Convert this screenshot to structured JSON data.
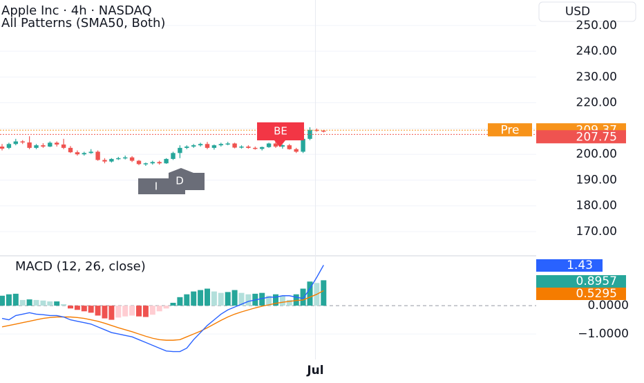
{
  "chart_data": [
    {
      "type": "candlestick",
      "title": "Apple Inc · 4h · NASDAQ",
      "subtitle": "All Patterns (SMA50, Both)",
      "currency": "USD",
      "x": [
        null,
        null,
        null,
        null,
        null,
        null,
        null,
        null,
        null,
        null,
        null,
        null,
        null,
        null,
        null,
        null,
        null,
        null,
        null,
        null,
        null,
        null,
        null,
        null,
        null,
        null,
        null,
        null,
        null,
        null,
        null,
        null,
        null,
        null,
        null,
        null,
        null,
        null,
        null,
        null,
        null,
        null,
        null,
        null,
        null,
        "Jul",
        null,
        null
      ],
      "open": [
        203,
        202.5,
        204,
        205,
        204.6,
        202.5,
        203.5,
        203,
        204.5,
        203.8,
        202.5,
        200.8,
        200,
        200.5,
        201,
        197.8,
        197.2,
        198.2,
        198.5,
        198.8,
        197.5,
        196.2,
        196.5,
        197,
        196.5,
        198.2,
        200.5,
        202.5,
        203,
        203.5,
        204,
        202.5,
        203.5,
        204,
        204.2,
        202.6,
        203,
        202.5,
        202.1,
        202.8,
        204.2,
        203,
        203.5,
        202,
        201,
        206,
        209.5,
        209.2
      ],
      "high": [
        204,
        204.5,
        206,
        205.5,
        207,
        204,
        204.3,
        205,
        205,
        206,
        203.2,
        201.5,
        201,
        202,
        201.5,
        198.5,
        198.5,
        199,
        199.5,
        199.3,
        197.8,
        196.8,
        197.5,
        197.5,
        198.5,
        201,
        203.5,
        203.5,
        204,
        204.5,
        204.8,
        203.8,
        204.5,
        204.8,
        204.5,
        203.5,
        203.5,
        203,
        203,
        204.5,
        205,
        203.8,
        204,
        202.5,
        206.5,
        210.5,
        210,
        209.5
      ],
      "low": [
        201.5,
        202,
        203.5,
        204,
        202,
        202,
        202.5,
        202.8,
        203,
        202,
        200.5,
        199.5,
        199.5,
        200.2,
        197.5,
        196.5,
        196.8,
        197.8,
        198,
        197,
        195.8,
        195.5,
        196,
        196,
        196.3,
        197.8,
        198.5,
        202,
        202.5,
        203,
        202,
        201.8,
        203,
        203.5,
        202.3,
        202.2,
        202.2,
        201.8,
        201.5,
        202.5,
        202.5,
        202.2,
        201.8,
        200.5,
        200.5,
        205.5,
        208.8,
        208.5
      ],
      "close": [
        202.2,
        204,
        205,
        204.6,
        202.5,
        203.5,
        203,
        204.5,
        203.8,
        202.5,
        200.8,
        200,
        200.5,
        201,
        197.8,
        197.2,
        198.2,
        198.5,
        198.8,
        197.5,
        196.2,
        196.5,
        197,
        196.5,
        198.2,
        200.5,
        202.5,
        203,
        203.5,
        204,
        202.5,
        203.5,
        204,
        204.2,
        202.6,
        203,
        202.5,
        202.1,
        202.8,
        204.2,
        203,
        203.5,
        202,
        201,
        206,
        209.5,
        209.2,
        208.8
      ],
      "up_color": "#26a69a",
      "down_color": "#ef5350",
      "ylim": [
        160.6,
        259.9
      ],
      "yticks": [
        {
          "value": 170,
          "label": "170.00"
        },
        {
          "value": 180,
          "label": "180.00"
        },
        {
          "value": 190,
          "label": "190.00"
        },
        {
          "value": 200,
          "label": "200.00"
        },
        {
          "value": 210,
          "label": "210.00"
        },
        {
          "value": 220,
          "label": "220.00"
        },
        {
          "value": 230,
          "label": "230.00"
        },
        {
          "value": 240,
          "label": "240.00"
        },
        {
          "value": 250,
          "label": "250.00"
        }
      ],
      "grid": true,
      "annotations": [
        {
          "text": "BE"
        },
        {
          "text": "I"
        },
        {
          "text": "D"
        }
      ],
      "pre_market": {
        "label": "Pre",
        "value": 209.37,
        "color": "#f7931a"
      },
      "last_price": 207.75
    },
    {
      "type": "macd",
      "title": "MACD (12, 26, close)",
      "histogram": [
        0.35,
        0.4,
        0.42,
        0.2,
        0.22,
        0.2,
        0.18,
        0.15,
        0.15,
        0.05,
        -0.1,
        -0.15,
        -0.2,
        -0.25,
        -0.35,
        -0.45,
        -0.5,
        -0.42,
        -0.38,
        -0.35,
        -0.38,
        -0.4,
        -0.32,
        -0.2,
        -0.1,
        0.1,
        0.3,
        0.4,
        0.5,
        0.55,
        0.6,
        0.5,
        0.45,
        0.48,
        0.55,
        0.45,
        0.4,
        0.42,
        0.45,
        0.35,
        0.4,
        0.35,
        0.2,
        0.4,
        0.6,
        0.85,
        0.8,
        0.8957
      ],
      "hist_colors": [
        "#26a69a",
        "#b2dfdb",
        "#ef5350",
        "#ffcdd2"
      ],
      "macd": {
        "color": "#2962ff",
        "values": [
          -0.45,
          -0.5,
          -0.35,
          -0.3,
          -0.25,
          -0.3,
          -0.32,
          -0.35,
          -0.35,
          -0.4,
          -0.5,
          -0.55,
          -0.6,
          -0.65,
          -0.75,
          -0.85,
          -0.95,
          -1.0,
          -1.05,
          -1.1,
          -1.2,
          -1.3,
          -1.4,
          -1.5,
          -1.6,
          -1.62,
          -1.62,
          -1.5,
          -1.2,
          -0.95,
          -0.7,
          -0.5,
          -0.3,
          -0.15,
          -0.05,
          0.05,
          0.15,
          0.2,
          0.25,
          0.3,
          0.3,
          0.35,
          0.35,
          0.3,
          0.25,
          0.6,
          1.0,
          1.43
        ]
      },
      "signal": {
        "color": "#f57c00",
        "values": [
          -0.75,
          -0.7,
          -0.65,
          -0.6,
          -0.55,
          -0.5,
          -0.45,
          -0.42,
          -0.4,
          -0.4,
          -0.4,
          -0.42,
          -0.45,
          -0.5,
          -0.55,
          -0.62,
          -0.7,
          -0.78,
          -0.85,
          -0.92,
          -1.0,
          -1.08,
          -1.15,
          -1.2,
          -1.22,
          -1.22,
          -1.2,
          -1.1,
          -1.0,
          -0.9,
          -0.78,
          -0.65,
          -0.52,
          -0.4,
          -0.3,
          -0.22,
          -0.15,
          -0.08,
          -0.02,
          0.03,
          0.08,
          0.12,
          0.15,
          0.18,
          0.2,
          0.3,
          0.4,
          0.5295
        ]
      },
      "ylim": [
        -1.9,
        1.71
      ],
      "yticks": [
        {
          "value": -1,
          "label": "−1.0000"
        },
        {
          "value": 0,
          "label": "0.0000"
        }
      ]
    }
  ]
}
